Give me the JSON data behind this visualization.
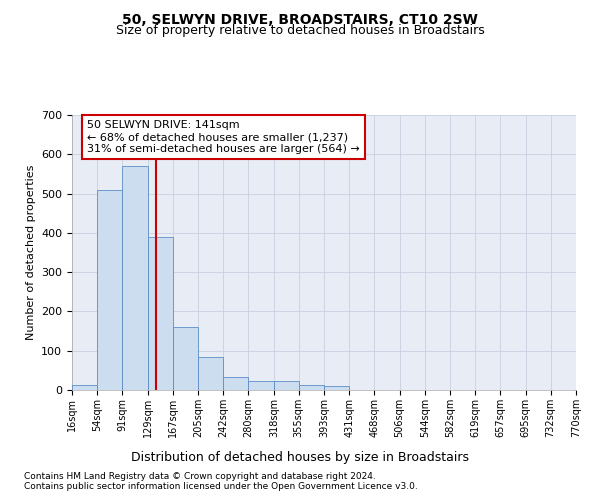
{
  "title": "50, SELWYN DRIVE, BROADSTAIRS, CT10 2SW",
  "subtitle": "Size of property relative to detached houses in Broadstairs",
  "xlabel": "Distribution of detached houses by size in Broadstairs",
  "ylabel": "Number of detached properties",
  "footnote1": "Contains HM Land Registry data © Crown copyright and database right 2024.",
  "footnote2": "Contains public sector information licensed under the Open Government Licence v3.0.",
  "annotation_line1": "50 SELWYN DRIVE: 141sqm",
  "annotation_line2": "← 68% of detached houses are smaller (1,237)",
  "annotation_line3": "31% of semi-detached houses are larger (564) →",
  "property_size": 141,
  "bin_edges": [
    16,
    54,
    91,
    129,
    167,
    205,
    242,
    280,
    318,
    355,
    393,
    431,
    468,
    506,
    544,
    582,
    619,
    657,
    695,
    732,
    770
  ],
  "bar_heights": [
    12,
    510,
    570,
    390,
    160,
    83,
    33,
    22,
    22,
    13,
    10,
    0,
    0,
    0,
    0,
    0,
    0,
    0,
    0,
    0
  ],
  "bar_color": "#cdddf0",
  "bar_edge_color": "#5b8dc8",
  "vline_color": "#cc0000",
  "annotation_box_color": "#cc0000",
  "background_color": "#ffffff",
  "plot_bg_color": "#e8edf5",
  "grid_color": "#c8d0e0",
  "ylim": [
    0,
    700
  ],
  "yticks": [
    0,
    100,
    200,
    300,
    400,
    500,
    600,
    700
  ]
}
